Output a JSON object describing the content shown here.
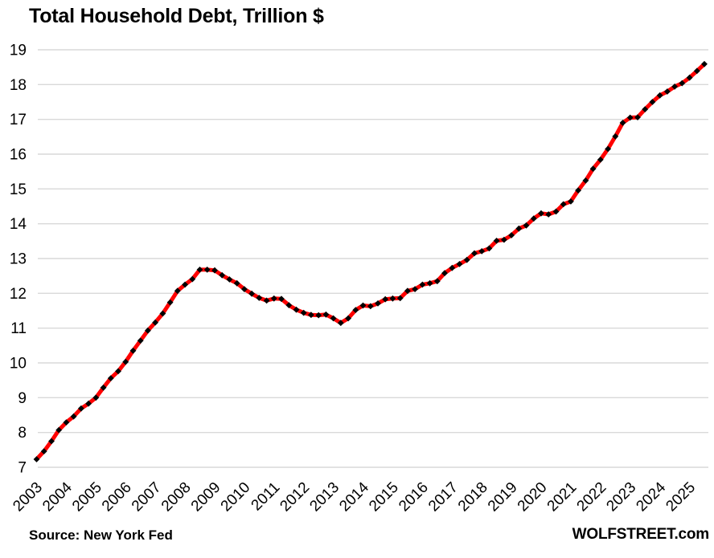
{
  "title": "Total Household Debt, Trillion $",
  "footer": {
    "source": "Source: New York Fed",
    "brand": "WOLFSTREET.com"
  },
  "chart_data": {
    "type": "line",
    "title": "Total Household Debt, Trillion $",
    "ylabel": "Trillion $",
    "ylim": [
      7,
      19
    ],
    "y_ticks": [
      7,
      8,
      9,
      10,
      11,
      12,
      13,
      14,
      15,
      16,
      17,
      18,
      19
    ],
    "x_tick_labels": [
      "2003",
      "2004",
      "2005",
      "2006",
      "2007",
      "2008",
      "2009",
      "2010",
      "2011",
      "2012",
      "2013",
      "2014",
      "2015",
      "2016",
      "2017",
      "2018",
      "2019",
      "2020",
      "2021",
      "2022",
      "2023",
      "2024",
      "2025"
    ],
    "grid": "horizontal-only",
    "gridline_color": "#d9d9d9",
    "background": "#ffffff",
    "text_color": "#000000",
    "legend": "none",
    "series": [
      {
        "name": "Total household debt",
        "frequency": "quarterly",
        "start_period": "2003 Q1",
        "end_period": "2025 Q3",
        "line_color": "#ff0000",
        "marker": "black-diamond",
        "marker_color": "#000000",
        "values": [
          7.23,
          7.46,
          7.75,
          8.07,
          8.29,
          8.46,
          8.69,
          8.83,
          9.0,
          9.29,
          9.56,
          9.76,
          10.03,
          10.35,
          10.64,
          10.93,
          11.16,
          11.42,
          11.74,
          12.07,
          12.25,
          12.41,
          12.68,
          12.68,
          12.66,
          12.52,
          12.4,
          12.29,
          12.12,
          11.99,
          11.87,
          11.79,
          11.85,
          11.84,
          11.66,
          11.53,
          11.44,
          11.38,
          11.37,
          11.39,
          11.28,
          11.15,
          11.28,
          11.52,
          11.65,
          11.63,
          11.71,
          11.83,
          11.85,
          11.86,
          12.07,
          12.12,
          12.25,
          12.29,
          12.35,
          12.58,
          12.73,
          12.84,
          12.96,
          13.15,
          13.21,
          13.29,
          13.51,
          13.54,
          13.67,
          13.86,
          13.95,
          14.15,
          14.3,
          14.27,
          14.35,
          14.56,
          14.64,
          14.96,
          15.24,
          15.58,
          15.84,
          16.15,
          16.51,
          16.9,
          17.05,
          17.06,
          17.29,
          17.5,
          17.69,
          17.8,
          17.94,
          18.04,
          18.2,
          18.39,
          18.59
        ]
      }
    ]
  }
}
